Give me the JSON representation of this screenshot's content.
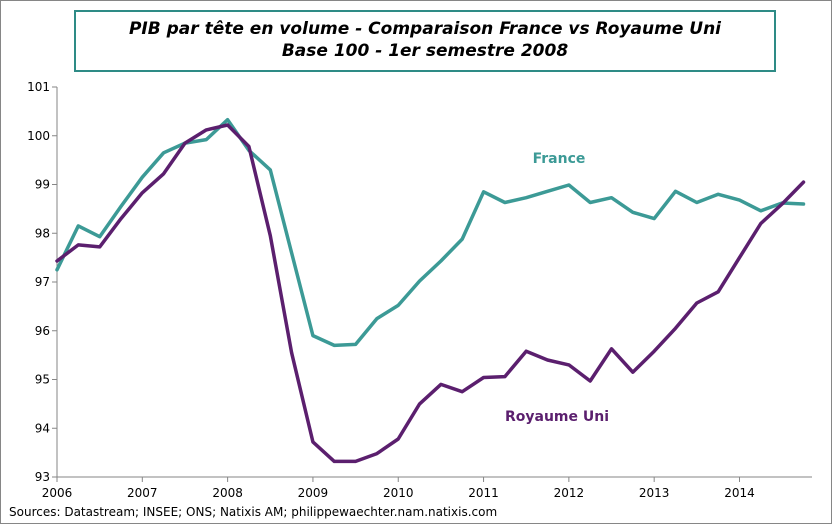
{
  "chart_data": {
    "type": "line",
    "title": "PIB par tête en volume - Comparaison France vs Royaume Uni",
    "subtitle": "Base 100 - 1er semestre 2008",
    "xlabel": "",
    "ylabel": "",
    "xlim": [
      2006,
      2014.85
    ],
    "ylim": [
      93,
      101
    ],
    "x_ticks": [
      "2006",
      "2007",
      "2008",
      "2009",
      "2010",
      "2011",
      "2012",
      "2013",
      "2014"
    ],
    "y_ticks": [
      "93",
      "94",
      "95",
      "96",
      "97",
      "98",
      "99",
      "100",
      "101"
    ],
    "grid": false,
    "series": [
      {
        "name": "France",
        "color": "#3c9a96",
        "label_at": [
          2006.25,
          2006.5,
          2006.75,
          2007.0,
          2007.25,
          2007.5,
          2007.75,
          2008.0,
          2008.25,
          2008.5,
          2008.75,
          2009.0,
          2009.25
        ],
        "x": [
          2006.0,
          2006.25,
          2006.5,
          2006.75,
          2007.0,
          2007.25,
          2007.5,
          2007.75,
          2008.0,
          2008.25,
          2008.5,
          2008.75,
          2009.0,
          2009.25,
          2009.5,
          2009.75,
          2010.0,
          2010.25,
          2010.5,
          2010.75,
          2011.0,
          2011.25,
          2011.5,
          2011.75,
          2012.0,
          2012.25,
          2012.5,
          2012.75,
          2013.0,
          2013.25,
          2013.5,
          2013.75,
          2014.0,
          2014.25,
          2014.5,
          2014.75
        ],
        "values": [
          97.25,
          98.15,
          97.93,
          98.55,
          99.15,
          99.65,
          99.85,
          99.92,
          100.33,
          99.7,
          99.3,
          97.6,
          95.9,
          95.7,
          95.72,
          96.25,
          96.52,
          97.02,
          97.43,
          97.88,
          98.85,
          98.63,
          98.73,
          98.86,
          98.99,
          98.63,
          98.73,
          98.43,
          98.3,
          98.86,
          98.63,
          98.8,
          98.68,
          98.46,
          98.62,
          98.6
        ]
      },
      {
        "name": "Royaume Uni",
        "color": "#5b1f6e",
        "x": [
          2006.0,
          2006.25,
          2006.5,
          2006.75,
          2007.0,
          2007.25,
          2007.5,
          2007.75,
          2008.0,
          2008.25,
          2008.5,
          2008.75,
          2009.0,
          2009.25,
          2009.5,
          2009.75,
          2010.0,
          2010.25,
          2010.5,
          2010.75,
          2011.0,
          2011.25,
          2011.5,
          2011.75,
          2012.0,
          2012.25,
          2012.5,
          2012.75,
          2013.0,
          2013.25,
          2013.5,
          2013.75,
          2014.0,
          2014.25,
          2014.5,
          2014.75
        ],
        "values": [
          97.43,
          97.76,
          97.72,
          98.3,
          98.83,
          99.22,
          99.85,
          100.12,
          100.22,
          99.78,
          97.95,
          95.55,
          93.72,
          93.32,
          93.32,
          93.48,
          93.78,
          94.5,
          94.9,
          94.75,
          95.04,
          95.06,
          95.58,
          95.4,
          95.3,
          94.97,
          95.63,
          95.15,
          95.58,
          96.05,
          96.57,
          96.8,
          97.5,
          98.2,
          98.6,
          99.05
        ]
      }
    ],
    "annotations": [
      {
        "text": "France",
        "series": "France"
      },
      {
        "text": "Royaume Uni",
        "series": "Royaume Uni"
      }
    ],
    "source": "Sources: Datastream; INSEE; ONS; Natixis AM; philippewaechter.nam.natixis.com"
  }
}
